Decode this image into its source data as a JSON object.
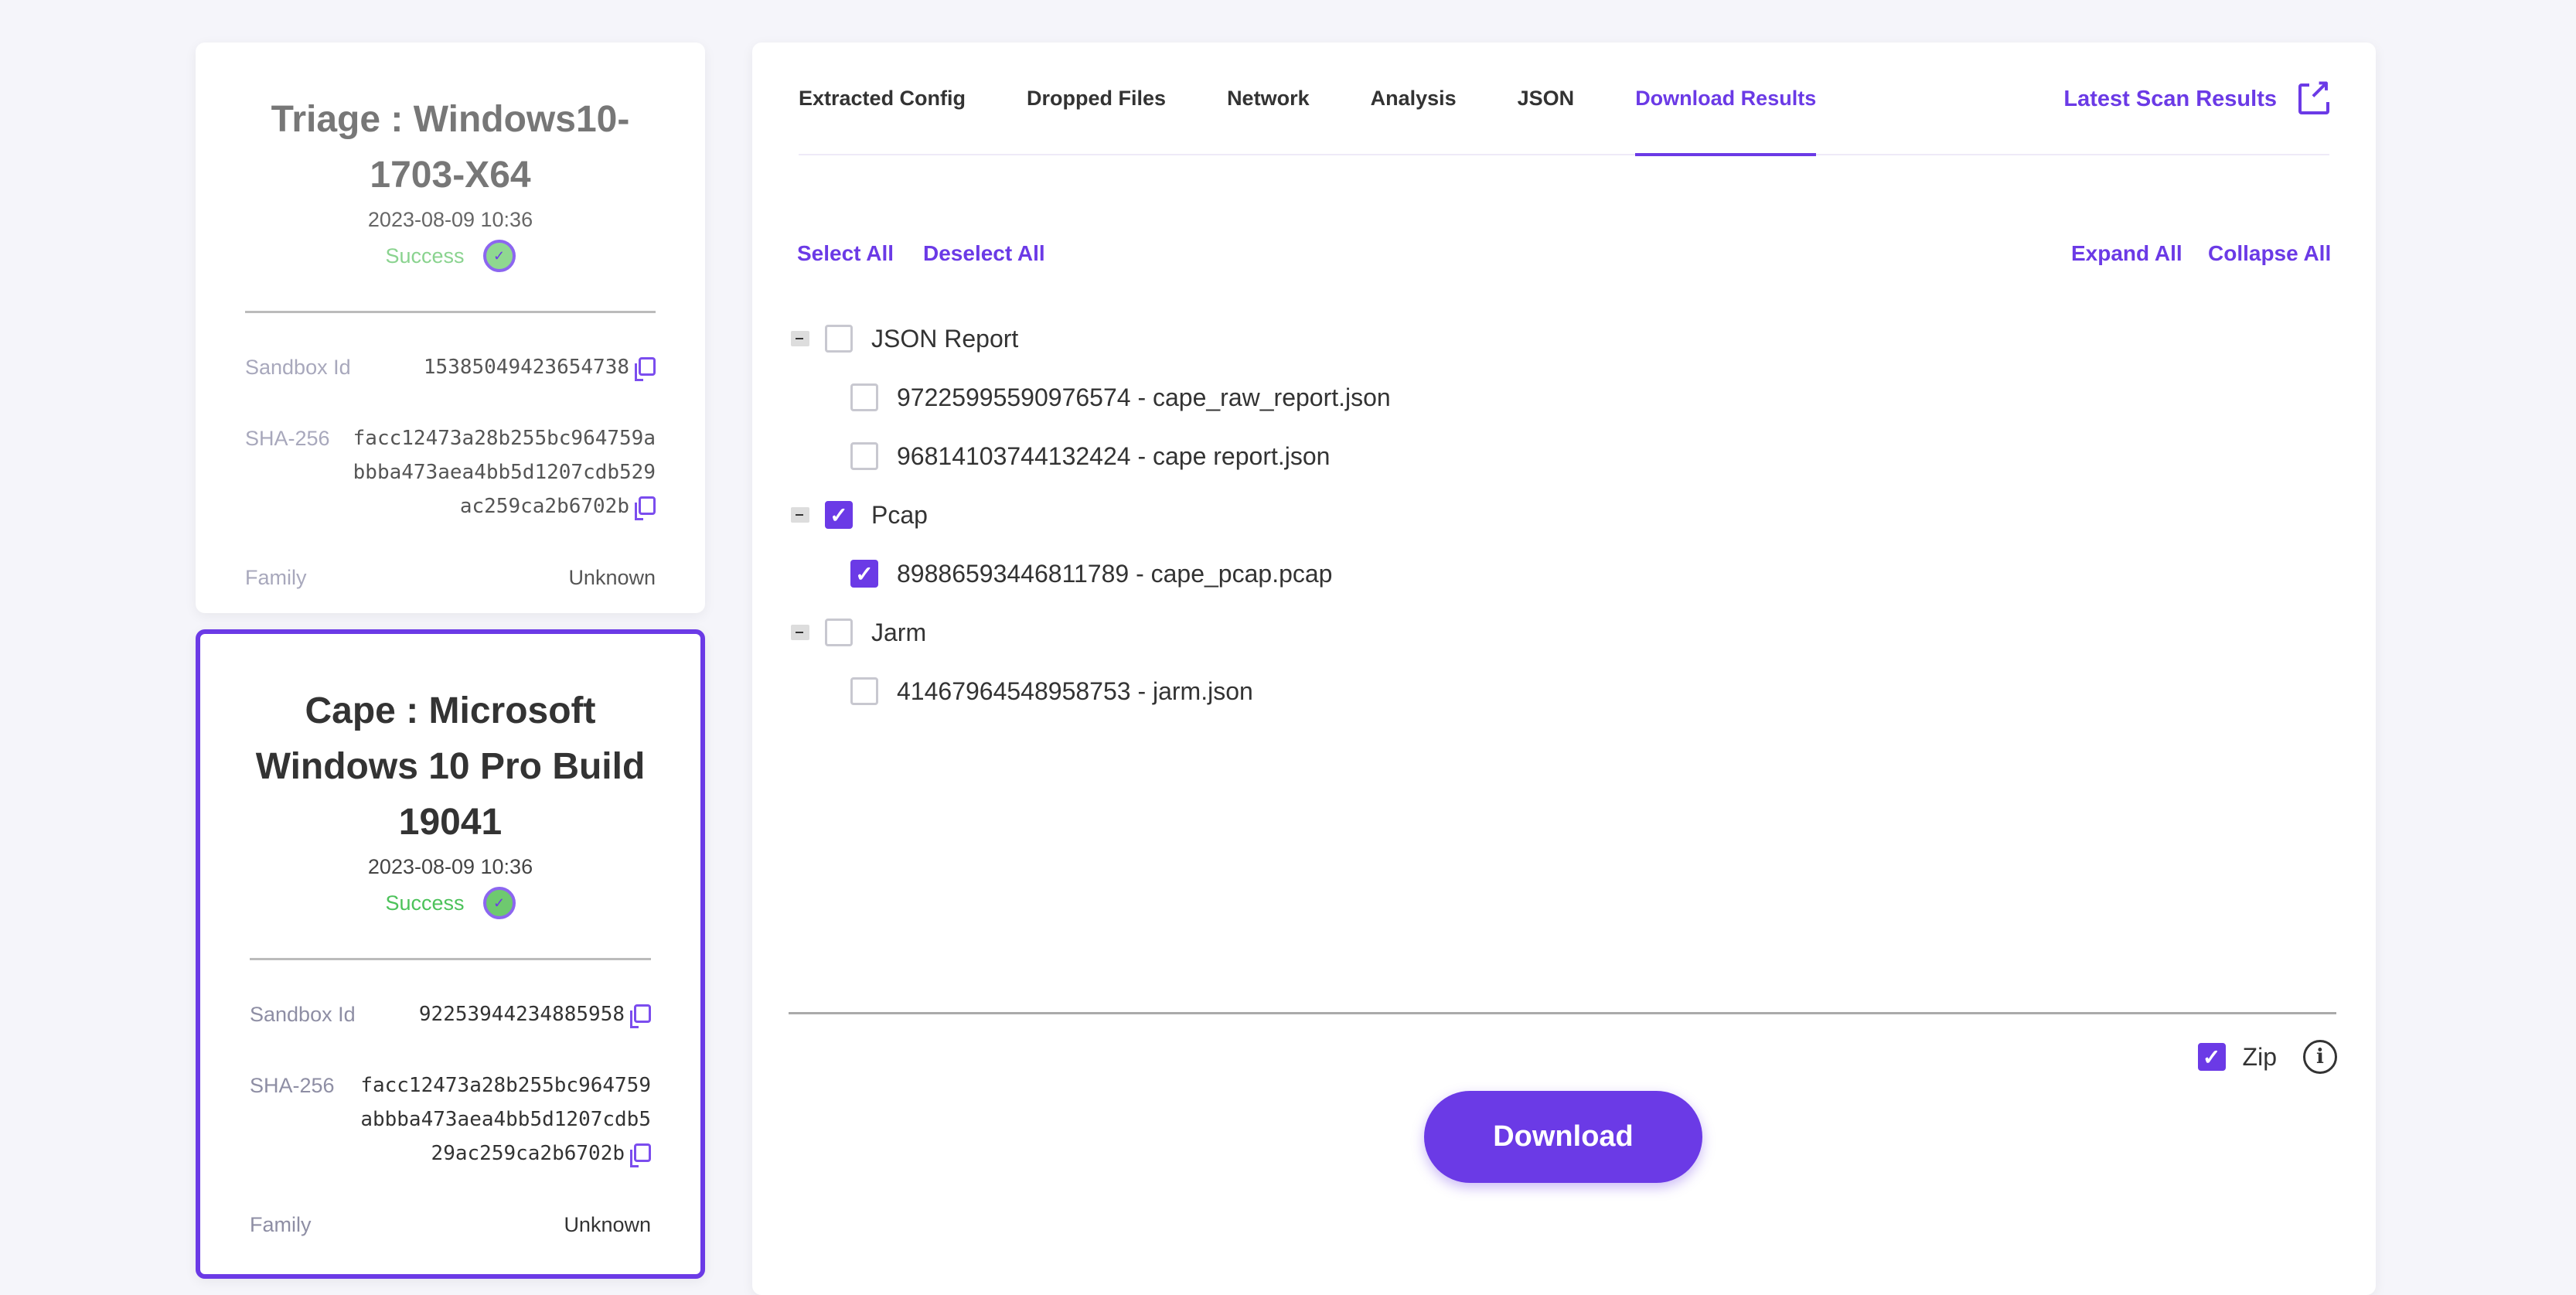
{
  "cards": [
    {
      "title": "Triage : Windows10-1703-X64",
      "date": "2023-08-09 10:36",
      "status": "Success",
      "sandbox_label": "Sandbox Id",
      "sandbox_id": "15385049423654738",
      "sha_label": "SHA-256",
      "sha_lines": [
        "facc12473a28b255bc964759a",
        "bbba473aea4bb5d1207cdb529",
        "ac259ca2b6702b"
      ],
      "family_label": "Family",
      "family": "Unknown"
    },
    {
      "title": "Cape : Microsoft Windows 10 Pro Build 19041",
      "date": "2023-08-09 10:36",
      "status": "Success",
      "sandbox_label": "Sandbox Id",
      "sandbox_id": "92253944234885958",
      "sha_label": "SHA-256",
      "sha_lines": [
        "facc12473a28b255bc964759",
        "abbba473aea4bb5d1207cdb5",
        "29ac259ca2b6702b"
      ],
      "family_label": "Family",
      "family": "Unknown"
    }
  ],
  "tabs": [
    {
      "label": "Extracted Config"
    },
    {
      "label": "Dropped Files"
    },
    {
      "label": "Network"
    },
    {
      "label": "Analysis"
    },
    {
      "label": "JSON"
    },
    {
      "label": "Download Results",
      "active": true
    }
  ],
  "latest_label": "Latest Scan Results",
  "actions": {
    "select_all": "Select All",
    "deselect_all": "Deselect All",
    "expand_all": "Expand All",
    "collapse_all": "Collapse All"
  },
  "tree": [
    {
      "label": "JSON Report",
      "checked": false,
      "children": [
        {
          "label": "97225995590976574 - cape_raw_report.json",
          "checked": false
        },
        {
          "label": "96814103744132424 - cape report.json",
          "checked": false
        }
      ]
    },
    {
      "label": "Pcap",
      "checked": true,
      "children": [
        {
          "label": "89886593446811789 - cape_pcap.pcap",
          "checked": true
        }
      ]
    },
    {
      "label": "Jarm",
      "checked": false,
      "children": [
        {
          "label": "41467964548958753 - jarm.json",
          "checked": false
        }
      ]
    }
  ],
  "zip": {
    "label": "Zip",
    "checked": true
  },
  "download_label": "Download",
  "colors": {
    "accent": "#6b3ae6",
    "success": "#4cc25a"
  }
}
